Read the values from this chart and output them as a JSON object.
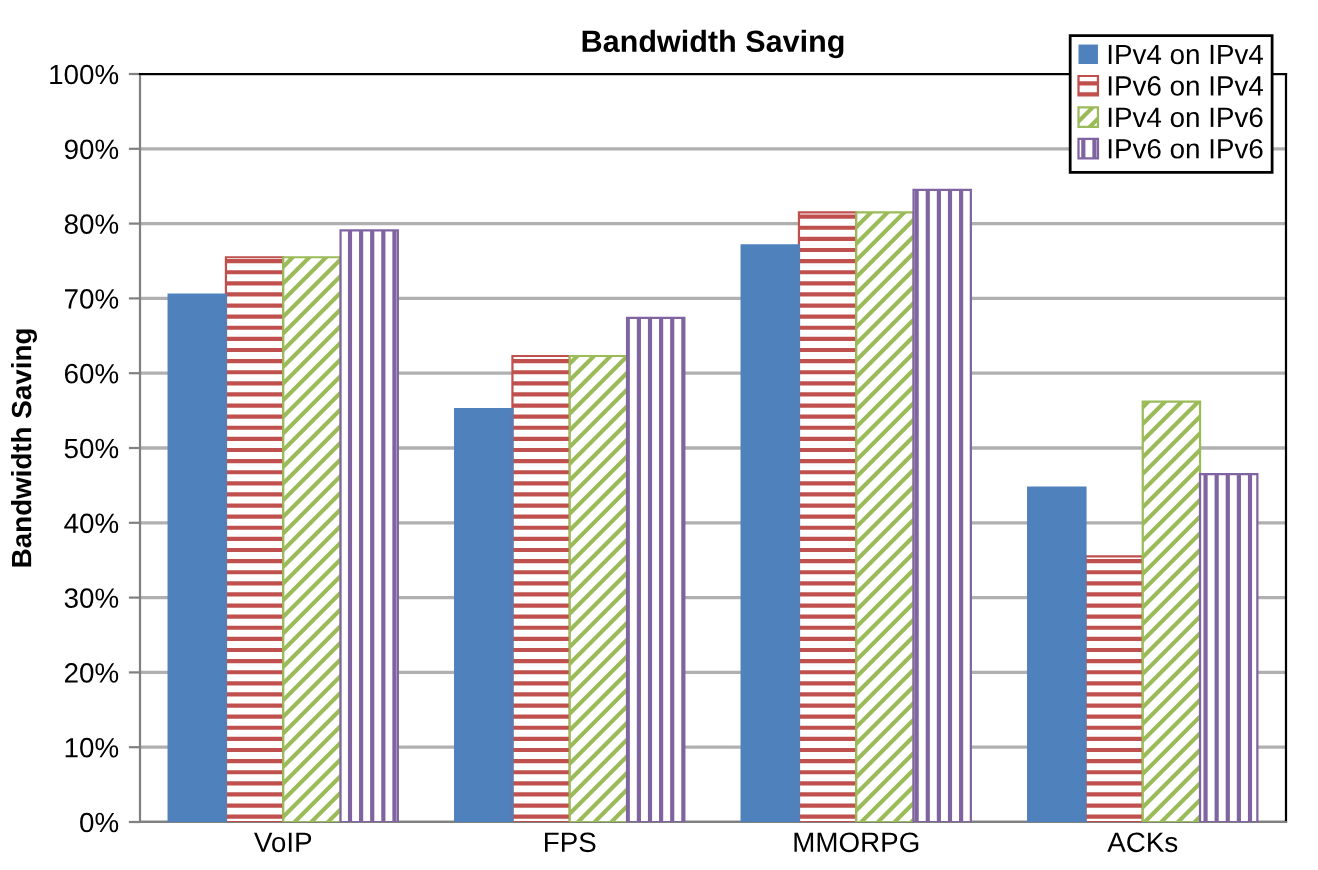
{
  "chart_data": {
    "type": "bar",
    "title": "Bandwidth Saving",
    "ylabel": "Bandwidth Saving",
    "categories": [
      "VoIP",
      "FPS",
      "MMORPG",
      "ACKs"
    ],
    "series": [
      {
        "name": "IPv4 on IPv4",
        "color": "#4f81bd",
        "values": [
          70.5,
          55.2,
          77.1,
          44.7
        ]
      },
      {
        "name": "IPv6 on IPv4",
        "color": "#c0504d",
        "values": [
          75.5,
          62.3,
          81.5,
          35.5
        ]
      },
      {
        "name": "IPv4 on IPv6",
        "color": "#9bbb59",
        "values": [
          75.5,
          62.3,
          81.5,
          56.2
        ]
      },
      {
        "name": "IPv6 on IPv6",
        "color": "#8064a2",
        "values": [
          79.1,
          67.4,
          84.5,
          46.5
        ]
      }
    ],
    "ylim": [
      0,
      100
    ],
    "yticks": [
      {
        "value": 0,
        "label": "0%"
      },
      {
        "value": 10,
        "label": "10%"
      },
      {
        "value": 20,
        "label": "20%"
      },
      {
        "value": 30,
        "label": "30%"
      },
      {
        "value": 40,
        "label": "40%"
      },
      {
        "value": 50,
        "label": "50%"
      },
      {
        "value": 60,
        "label": "60%"
      },
      {
        "value": 70,
        "label": "70%"
      },
      {
        "value": 80,
        "label": "80%"
      },
      {
        "value": 90,
        "label": "90%"
      },
      {
        "value": 100,
        "label": "100%"
      }
    ],
    "grid": "y",
    "legend": "top right"
  }
}
